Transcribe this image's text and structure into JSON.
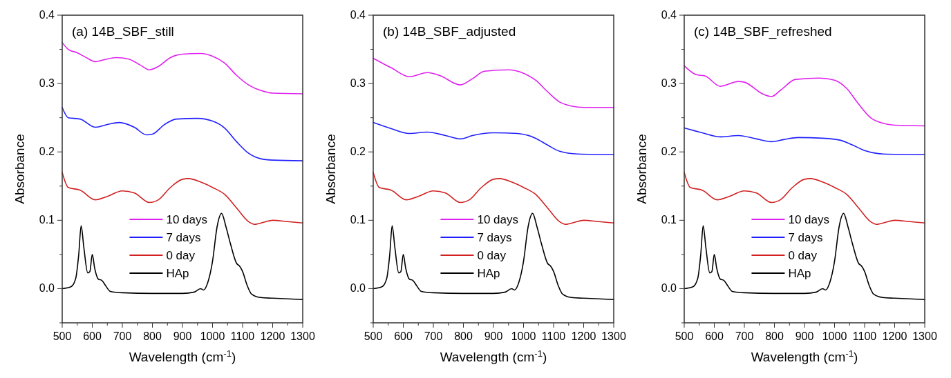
{
  "chart_data": [
    {
      "type": "line",
      "title": "(a)  14B_SBF_still",
      "xlabel": "Wavelength (cm$^{-1}$)",
      "ylabel": "Absorbance",
      "xlim": [
        500,
        1300
      ],
      "ylim": [
        -0.05,
        0.4
      ],
      "xticks": [
        500,
        {
          "value": 550,
          "label": null
        },
        600,
        {
          "value": 650,
          "label": null
        },
        700,
        {
          "value": 750,
          "label": null
        },
        800,
        {
          "value": 850,
          "label": null
        },
        900,
        {
          "value": 950,
          "label": null
        },
        1000,
        {
          "value": 1050,
          "label": null
        },
        1100,
        {
          "value": 1150,
          "label": null
        },
        1200,
        {
          "value": 1250,
          "label": null
        },
        1300
      ],
      "yticks": [
        {
          "value": -0.05,
          "label": null
        },
        {
          "value": 0,
          "label": "0.0"
        },
        {
          "value": 0.05,
          "label": null
        },
        0.1,
        {
          "value": 0.15,
          "label": null
        },
        0.2,
        {
          "value": 0.25,
          "label": null
        },
        0.3,
        {
          "value": 0.35,
          "label": null
        },
        0.4
      ],
      "legend": "bottom",
      "grid": false,
      "marker": "none",
      "line_style": "solid",
      "series": [
        {
          "name": "10 days",
          "color": "#e020f0",
          "x": [
            500,
            520,
            550,
            580,
            610,
            640,
            680,
            720,
            760,
            790,
            820,
            860,
            900,
            960,
            1000,
            1040,
            1080,
            1120,
            1160,
            1200,
            1300
          ],
          "values": [
            0.36,
            0.35,
            0.345,
            0.338,
            0.332,
            0.335,
            0.338,
            0.336,
            0.327,
            0.32,
            0.325,
            0.338,
            0.343,
            0.344,
            0.34,
            0.33,
            0.312,
            0.298,
            0.29,
            0.286,
            0.285
          ]
        },
        {
          "name": "7 days",
          "color": "#2020ff",
          "x": [
            500,
            520,
            560,
            610,
            650,
            690,
            740,
            780,
            800,
            840,
            880,
            950,
            1000,
            1040,
            1080,
            1120,
            1160,
            1200,
            1300
          ],
          "values": [
            0.265,
            0.25,
            0.248,
            0.236,
            0.24,
            0.243,
            0.236,
            0.225,
            0.226,
            0.24,
            0.248,
            0.249,
            0.245,
            0.235,
            0.215,
            0.198,
            0.19,
            0.188,
            0.187
          ]
        },
        {
          "name": "0 day",
          "color": "#d02020",
          "x": [
            500,
            520,
            560,
            610,
            650,
            700,
            740,
            790,
            820,
            860,
            900,
            920,
            960,
            1000,
            1040,
            1080,
            1120,
            1140,
            1170,
            1200,
            1250,
            1300
          ],
          "values": [
            0.17,
            0.148,
            0.144,
            0.13,
            0.135,
            0.143,
            0.14,
            0.126,
            0.13,
            0.148,
            0.16,
            0.161,
            0.156,
            0.148,
            0.138,
            0.118,
            0.098,
            0.094,
            0.097,
            0.1,
            0.098,
            0.096
          ]
        },
        {
          "name": "HAp",
          "color": "#000000",
          "x": [
            500,
            530,
            545,
            555,
            563,
            572,
            585,
            592,
            600,
            608,
            620,
            632,
            645,
            660,
            700,
            800,
            900,
            940,
            960,
            970,
            985,
            1000,
            1015,
            1030,
            1045,
            1060,
            1080,
            1090,
            1100,
            1115,
            1130,
            1160,
            1200,
            1300
          ],
          "values": [
            0.0,
            0.003,
            0.015,
            0.05,
            0.092,
            0.06,
            0.023,
            0.025,
            0.05,
            0.03,
            0.014,
            0.012,
            0.004,
            -0.004,
            -0.006,
            -0.007,
            -0.007,
            -0.005,
            0.0,
            -0.002,
            0.01,
            0.04,
            0.09,
            0.11,
            0.09,
            0.065,
            0.037,
            0.033,
            0.025,
            0.005,
            -0.008,
            -0.013,
            -0.014,
            -0.016
          ]
        }
      ]
    },
    {
      "type": "line",
      "title": "(b) 14B_SBF_adjusted",
      "xlabel": "Wavelength (cm$^{-1}$)",
      "ylabel": "Absorbance",
      "xlim": [
        500,
        1300
      ],
      "ylim": [
        -0.05,
        0.4
      ],
      "xticks": [
        500,
        {
          "value": 550,
          "label": null
        },
        600,
        {
          "value": 650,
          "label": null
        },
        700,
        {
          "value": 750,
          "label": null
        },
        800,
        {
          "value": 850,
          "label": null
        },
        900,
        {
          "value": 950,
          "label": null
        },
        1000,
        {
          "value": 1050,
          "label": null
        },
        1100,
        {
          "value": 1150,
          "label": null
        },
        1200,
        {
          "value": 1250,
          "label": null
        },
        1300
      ],
      "yticks": [
        {
          "value": -0.05,
          "label": null
        },
        {
          "value": 0,
          "label": "0.0"
        },
        {
          "value": 0.05,
          "label": null
        },
        0.1,
        {
          "value": 0.15,
          "label": null
        },
        0.2,
        {
          "value": 0.25,
          "label": null
        },
        0.3,
        {
          "value": 0.35,
          "label": null
        },
        0.4
      ],
      "legend": "bottom",
      "grid": false,
      "marker": "none",
      "line_style": "solid",
      "series": [
        {
          "name": "10 days",
          "color": "#e020f0",
          "x": [
            500,
            560,
            620,
            680,
            720,
            790,
            830,
            870,
            950,
            1000,
            1040,
            1080,
            1120,
            1160,
            1200,
            1300
          ],
          "values": [
            0.337,
            0.323,
            0.31,
            0.316,
            0.312,
            0.298,
            0.307,
            0.318,
            0.32,
            0.315,
            0.305,
            0.288,
            0.273,
            0.267,
            0.265,
            0.265
          ]
        },
        {
          "name": "7 days",
          "color": "#2020ff",
          "x": [
            500,
            560,
            620,
            680,
            740,
            790,
            830,
            900,
            980,
            1040,
            1080,
            1120,
            1180,
            1300
          ],
          "values": [
            0.243,
            0.234,
            0.227,
            0.229,
            0.224,
            0.219,
            0.224,
            0.228,
            0.227,
            0.22,
            0.21,
            0.201,
            0.197,
            0.196
          ]
        },
        {
          "name": "0 day",
          "color": "#d02020",
          "x": [
            500,
            520,
            560,
            610,
            650,
            700,
            740,
            790,
            820,
            860,
            900,
            920,
            960,
            1000,
            1040,
            1080,
            1120,
            1140,
            1170,
            1200,
            1250,
            1300
          ],
          "values": [
            0.17,
            0.148,
            0.144,
            0.13,
            0.135,
            0.143,
            0.14,
            0.126,
            0.13,
            0.148,
            0.16,
            0.161,
            0.156,
            0.148,
            0.138,
            0.118,
            0.098,
            0.094,
            0.097,
            0.1,
            0.098,
            0.096
          ]
        },
        {
          "name": "HAp",
          "color": "#000000",
          "x": [
            500,
            530,
            545,
            555,
            563,
            572,
            585,
            592,
            600,
            608,
            620,
            632,
            645,
            660,
            700,
            800,
            900,
            940,
            960,
            970,
            985,
            1000,
            1015,
            1030,
            1045,
            1060,
            1080,
            1090,
            1100,
            1115,
            1130,
            1160,
            1200,
            1300
          ],
          "values": [
            0.0,
            0.003,
            0.015,
            0.05,
            0.092,
            0.06,
            0.023,
            0.025,
            0.05,
            0.03,
            0.014,
            0.012,
            0.004,
            -0.004,
            -0.006,
            -0.007,
            -0.007,
            -0.005,
            0.0,
            -0.002,
            0.01,
            0.04,
            0.09,
            0.11,
            0.09,
            0.065,
            0.037,
            0.033,
            0.025,
            0.005,
            -0.008,
            -0.013,
            -0.014,
            -0.016
          ]
        }
      ]
    },
    {
      "type": "line",
      "title": "(c)  14B_SBF_refreshed",
      "xlabel": "Wavelength (cm$^{-1}$)",
      "ylabel": "Absorbance",
      "xlim": [
        500,
        1300
      ],
      "ylim": [
        -0.05,
        0.4
      ],
      "xticks": [
        500,
        {
          "value": 550,
          "label": null
        },
        600,
        {
          "value": 650,
          "label": null
        },
        700,
        {
          "value": 750,
          "label": null
        },
        800,
        {
          "value": 850,
          "label": null
        },
        900,
        {
          "value": 950,
          "label": null
        },
        1000,
        {
          "value": 1050,
          "label": null
        },
        1100,
        {
          "value": 1150,
          "label": null
        },
        1200,
        {
          "value": 1250,
          "label": null
        },
        1300
      ],
      "yticks": [
        {
          "value": -0.05,
          "label": null
        },
        {
          "value": 0,
          "label": "0.0"
        },
        {
          "value": 0.05,
          "label": null
        },
        0.1,
        {
          "value": 0.15,
          "label": null
        },
        0.2,
        {
          "value": 0.25,
          "label": null
        },
        0.3,
        {
          "value": 0.35,
          "label": null
        },
        0.4
      ],
      "legend": "bottom",
      "grid": false,
      "marker": "none",
      "line_style": "solid",
      "series": [
        {
          "name": "10 days",
          "color": "#e020f0",
          "x": [
            500,
            540,
            570,
            620,
            680,
            700,
            760,
            790,
            820,
            870,
            950,
            1000,
            1040,
            1080,
            1120,
            1160,
            1200,
            1300
          ],
          "values": [
            0.326,
            0.313,
            0.311,
            0.296,
            0.303,
            0.302,
            0.285,
            0.281,
            0.29,
            0.306,
            0.308,
            0.305,
            0.293,
            0.27,
            0.25,
            0.242,
            0.239,
            0.238
          ]
        },
        {
          "name": "7 days",
          "color": "#2020ff",
          "x": [
            500,
            560,
            620,
            680,
            740,
            790,
            830,
            880,
            960,
            1020,
            1060,
            1100,
            1160,
            1300
          ],
          "values": [
            0.235,
            0.228,
            0.222,
            0.224,
            0.219,
            0.215,
            0.218,
            0.221,
            0.22,
            0.217,
            0.21,
            0.202,
            0.197,
            0.196
          ]
        },
        {
          "name": "0 day",
          "color": "#d02020",
          "x": [
            500,
            520,
            560,
            610,
            650,
            700,
            740,
            790,
            820,
            860,
            900,
            920,
            960,
            1000,
            1040,
            1080,
            1120,
            1140,
            1170,
            1200,
            1250,
            1300
          ],
          "values": [
            0.17,
            0.148,
            0.144,
            0.13,
            0.135,
            0.143,
            0.14,
            0.126,
            0.13,
            0.148,
            0.16,
            0.161,
            0.156,
            0.148,
            0.138,
            0.118,
            0.098,
            0.094,
            0.097,
            0.1,
            0.098,
            0.096
          ]
        },
        {
          "name": "HAp",
          "color": "#000000",
          "x": [
            500,
            530,
            545,
            555,
            563,
            572,
            585,
            592,
            600,
            608,
            620,
            632,
            645,
            660,
            700,
            800,
            900,
            940,
            960,
            970,
            985,
            1000,
            1015,
            1030,
            1045,
            1060,
            1080,
            1090,
            1100,
            1115,
            1130,
            1160,
            1200,
            1300
          ],
          "values": [
            0.0,
            0.003,
            0.015,
            0.05,
            0.092,
            0.06,
            0.023,
            0.025,
            0.05,
            0.03,
            0.014,
            0.012,
            0.004,
            -0.004,
            -0.006,
            -0.007,
            -0.007,
            -0.005,
            0.0,
            -0.002,
            0.01,
            0.04,
            0.09,
            0.11,
            0.09,
            0.065,
            0.037,
            0.033,
            0.025,
            0.005,
            -0.008,
            -0.013,
            -0.014,
            -0.016
          ]
        }
      ]
    }
  ]
}
